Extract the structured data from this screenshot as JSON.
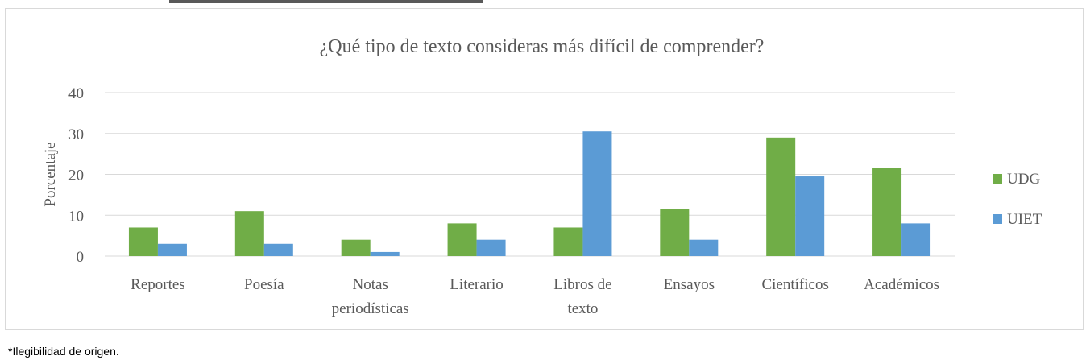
{
  "chart_data": {
    "type": "bar",
    "title": "¿Qué tipo de texto consideras más difícil de comprender?",
    "ylabel": "Porcentaje",
    "xlabel": "",
    "ylim": [
      0,
      40
    ],
    "yticks": [
      0,
      10,
      20,
      30,
      40
    ],
    "grid": true,
    "legend_position": "right",
    "categories": [
      [
        "Reportes"
      ],
      [
        "Poesía"
      ],
      [
        "Notas",
        "periodísticas"
      ],
      [
        "Literario"
      ],
      [
        "Libros de",
        "texto"
      ],
      [
        "Ensayos"
      ],
      [
        "Científicos"
      ],
      [
        "Académicos"
      ]
    ],
    "series": [
      {
        "name": "UDG",
        "color": "#70ad47",
        "values": [
          7,
          11,
          4,
          8,
          7,
          11.5,
          29,
          21.5
        ]
      },
      {
        "name": "UIET",
        "color": "#5b9bd5",
        "values": [
          3,
          3,
          1,
          4,
          30.5,
          4,
          19.5,
          8
        ]
      }
    ]
  },
  "footnote": "*Ilegibilidad de origen."
}
